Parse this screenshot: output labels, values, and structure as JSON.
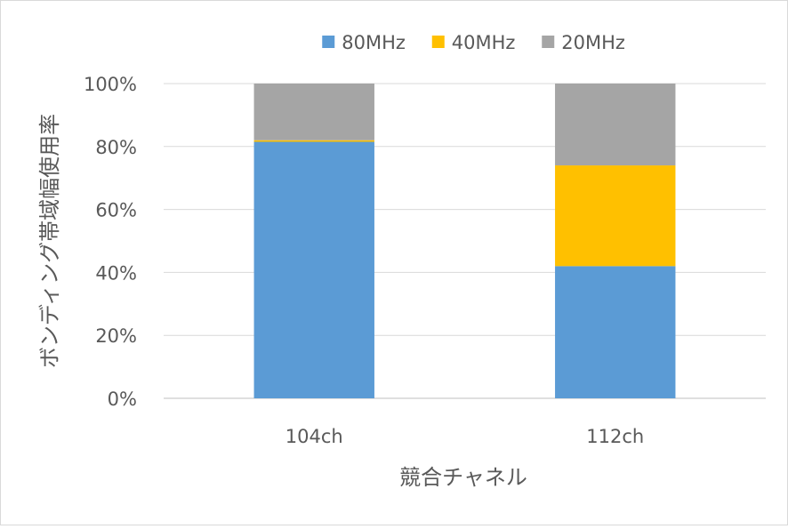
{
  "chart_data": {
    "type": "bar",
    "stacked": true,
    "percent": true,
    "categories": [
      "104ch",
      "112ch"
    ],
    "series": [
      {
        "name": "80MHz",
        "values": [
          81.5,
          42
        ],
        "color": "#5b9bd5"
      },
      {
        "name": "40MHz",
        "values": [
          0.5,
          32
        ],
        "color": "#ffc000"
      },
      {
        "name": "20MHz",
        "values": [
          18,
          26
        ],
        "color": "#a5a5a5"
      }
    ],
    "xlabel": "競合チャネル",
    "ylabel": "ボンディング帯域幅使用率",
    "ylim": [
      0,
      100
    ],
    "yticks": [
      "0%",
      "20%",
      "40%",
      "60%",
      "80%",
      "100%"
    ],
    "grid": true,
    "legend_position": "top"
  }
}
